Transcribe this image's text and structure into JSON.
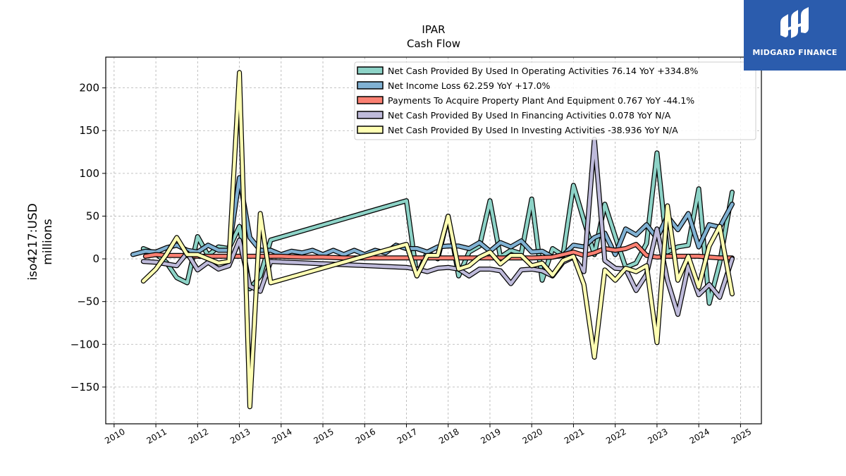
{
  "brand": {
    "name": "MIDGARD FINANCE",
    "color": "#2b5cad"
  },
  "chart_data": {
    "type": "line",
    "title": "IPAR",
    "subtitle": "Cash Flow",
    "xlabel": "",
    "ylabel": "iso4217:USD millions",
    "ylabel_lines": [
      "iso4217:USD",
      "millions"
    ],
    "xlim": [
      2009.8,
      2025.5
    ],
    "ylim": [
      -193,
      236
    ],
    "xticks": [
      2010,
      2011,
      2012,
      2013,
      2014,
      2015,
      2016,
      2017,
      2018,
      2019,
      2020,
      2021,
      2022,
      2023,
      2024,
      2025
    ],
    "xtick_labels": [
      "2010",
      "2011",
      "2012",
      "2013",
      "2014",
      "2015",
      "2016",
      "2017",
      "2018",
      "2019",
      "2020",
      "2021",
      "2022",
      "2023",
      "2024",
      "2025"
    ],
    "yticks": [
      -150,
      -100,
      -50,
      0,
      50,
      100,
      150,
      200
    ],
    "ytick_labels": [
      "−150",
      "−100",
      "−50",
      "0",
      "50",
      "100",
      "150",
      "200"
    ],
    "grid": true,
    "legend_position": "top-right",
    "series": [
      {
        "name": "Net Cash Provided By Used In Operating Activities",
        "legend": "Net Cash Provided By Used In Operating Activities  76.14 YoY +334.8%",
        "color": "#8dd3c7",
        "points": [
          [
            2010.7,
            12
          ],
          [
            2011.0,
            6
          ],
          [
            2011.25,
            -4
          ],
          [
            2011.5,
            -22
          ],
          [
            2011.75,
            -28
          ],
          [
            2012.0,
            26
          ],
          [
            2012.25,
            4
          ],
          [
            2012.5,
            14
          ],
          [
            2012.75,
            12
          ],
          [
            2013.0,
            38
          ],
          [
            2013.25,
            -35
          ],
          [
            2013.5,
            -20
          ],
          [
            2013.75,
            22
          ],
          [
            2017.0,
            68
          ],
          [
            2017.25,
            -20
          ],
          [
            2017.5,
            8
          ],
          [
            2017.75,
            0
          ],
          [
            2018.0,
            50
          ],
          [
            2018.25,
            -20
          ],
          [
            2018.5,
            8
          ],
          [
            2018.75,
            15
          ],
          [
            2019.0,
            68
          ],
          [
            2019.25,
            2
          ],
          [
            2019.5,
            10
          ],
          [
            2019.75,
            6
          ],
          [
            2020.0,
            70
          ],
          [
            2020.25,
            -25
          ],
          [
            2020.5,
            12
          ],
          [
            2020.75,
            4
          ],
          [
            2021.0,
            86
          ],
          [
            2021.25,
            45
          ],
          [
            2021.5,
            5
          ],
          [
            2021.75,
            64
          ],
          [
            2022.0,
            26
          ],
          [
            2022.25,
            -10
          ],
          [
            2022.5,
            -5
          ],
          [
            2022.75,
            18
          ],
          [
            2023.0,
            124
          ],
          [
            2023.25,
            8
          ],
          [
            2023.5,
            14
          ],
          [
            2023.75,
            16
          ],
          [
            2024.0,
            82
          ],
          [
            2024.25,
            -52
          ],
          [
            2024.5,
            -5
          ],
          [
            2024.8,
            78
          ]
        ]
      },
      {
        "name": "Net Income Loss",
        "legend": "Net Income Loss  62.259 YoY +17.0%",
        "color": "#80b1d3",
        "points": [
          [
            2010.45,
            5
          ],
          [
            2010.75,
            9
          ],
          [
            2011.0,
            8
          ],
          [
            2011.25,
            13
          ],
          [
            2011.5,
            16
          ],
          [
            2011.75,
            10
          ],
          [
            2012.0,
            8
          ],
          [
            2012.25,
            16
          ],
          [
            2012.5,
            10
          ],
          [
            2012.75,
            10
          ],
          [
            2013.0,
            95
          ],
          [
            2013.25,
            25
          ],
          [
            2013.5,
            10
          ],
          [
            2013.75,
            10
          ],
          [
            2014.0,
            5
          ],
          [
            2014.25,
            9
          ],
          [
            2014.5,
            7
          ],
          [
            2014.75,
            10
          ],
          [
            2015.0,
            5
          ],
          [
            2015.25,
            10
          ],
          [
            2015.5,
            5
          ],
          [
            2015.75,
            10
          ],
          [
            2016.0,
            5
          ],
          [
            2016.25,
            10
          ],
          [
            2016.5,
            7
          ],
          [
            2016.75,
            16
          ],
          [
            2017.0,
            12
          ],
          [
            2017.25,
            12
          ],
          [
            2017.5,
            8
          ],
          [
            2017.75,
            14
          ],
          [
            2018.0,
            15
          ],
          [
            2018.25,
            15
          ],
          [
            2018.5,
            12
          ],
          [
            2018.75,
            19
          ],
          [
            2019.0,
            9
          ],
          [
            2019.25,
            19
          ],
          [
            2019.5,
            14
          ],
          [
            2019.75,
            21
          ],
          [
            2020.0,
            8
          ],
          [
            2020.25,
            9
          ],
          [
            2020.5,
            2
          ],
          [
            2020.75,
            4
          ],
          [
            2021.0,
            16
          ],
          [
            2021.25,
            14
          ],
          [
            2021.5,
            25
          ],
          [
            2021.75,
            30
          ],
          [
            2022.0,
            5
          ],
          [
            2022.25,
            35
          ],
          [
            2022.5,
            28
          ],
          [
            2022.75,
            40
          ],
          [
            2023.0,
            24
          ],
          [
            2023.25,
            50
          ],
          [
            2023.5,
            34
          ],
          [
            2023.75,
            53
          ],
          [
            2024.0,
            14
          ],
          [
            2024.25,
            40
          ],
          [
            2024.5,
            37
          ],
          [
            2024.8,
            64
          ]
        ]
      },
      {
        "name": "Payments To Acquire Property Plant And Equipment",
        "legend": "Payments To Acquire Property Plant And Equipment  0.767 YoY -44.1%",
        "color": "#fb8072",
        "points": [
          [
            2010.75,
            3
          ],
          [
            2011.0,
            5
          ],
          [
            2011.25,
            4
          ],
          [
            2011.5,
            4
          ],
          [
            2011.75,
            4
          ],
          [
            2012.0,
            3
          ],
          [
            2012.25,
            3
          ],
          [
            2012.5,
            3
          ],
          [
            2012.75,
            3
          ],
          [
            2013.0,
            3
          ],
          [
            2013.25,
            3
          ],
          [
            2013.5,
            3
          ],
          [
            2013.75,
            3
          ],
          [
            2014.0,
            3
          ],
          [
            2014.5,
            2
          ],
          [
            2015.0,
            2
          ],
          [
            2015.5,
            1
          ],
          [
            2016.0,
            1
          ],
          [
            2016.5,
            1
          ],
          [
            2017.0,
            1
          ],
          [
            2017.5,
            1
          ],
          [
            2018.0,
            1
          ],
          [
            2018.5,
            1
          ],
          [
            2019.0,
            1
          ],
          [
            2019.5,
            1
          ],
          [
            2020.0,
            1
          ],
          [
            2020.5,
            2
          ],
          [
            2020.75,
            5
          ],
          [
            2021.0,
            8
          ],
          [
            2021.25,
            4
          ],
          [
            2021.5,
            7
          ],
          [
            2021.75,
            12
          ],
          [
            2022.0,
            10
          ],
          [
            2022.25,
            12
          ],
          [
            2022.5,
            17
          ],
          [
            2022.75,
            4
          ],
          [
            2023.0,
            2
          ],
          [
            2023.25,
            3
          ],
          [
            2023.5,
            3
          ],
          [
            2023.75,
            3
          ],
          [
            2024.0,
            3
          ],
          [
            2024.25,
            2
          ],
          [
            2024.5,
            1
          ],
          [
            2024.8,
            1
          ]
        ]
      },
      {
        "name": "Net Cash Provided By Used In Financing Activities",
        "legend": "Net Cash Provided By Used In Financing Activities  0.078 YoY N/A",
        "color": "#bebada",
        "points": [
          [
            2010.7,
            -3
          ],
          [
            2011.0,
            -4
          ],
          [
            2011.25,
            -6
          ],
          [
            2011.5,
            -8
          ],
          [
            2011.75,
            7
          ],
          [
            2012.0,
            -13
          ],
          [
            2012.25,
            -4
          ],
          [
            2012.5,
            -12
          ],
          [
            2012.75,
            -8
          ],
          [
            2013.0,
            22
          ],
          [
            2013.25,
            -32
          ],
          [
            2013.5,
            -38
          ],
          [
            2013.75,
            -3
          ],
          [
            2017.0,
            -10
          ],
          [
            2017.25,
            -12
          ],
          [
            2017.5,
            -15
          ],
          [
            2017.75,
            -11
          ],
          [
            2018.0,
            -10
          ],
          [
            2018.25,
            -12
          ],
          [
            2018.5,
            -20
          ],
          [
            2018.75,
            -12
          ],
          [
            2019.0,
            -12
          ],
          [
            2019.25,
            -14
          ],
          [
            2019.5,
            -29
          ],
          [
            2019.75,
            -13
          ],
          [
            2020.0,
            -12
          ],
          [
            2020.25,
            -14
          ],
          [
            2020.5,
            -20
          ],
          [
            2020.75,
            -4
          ],
          [
            2021.0,
            2
          ],
          [
            2021.25,
            -15
          ],
          [
            2021.5,
            140
          ],
          [
            2021.75,
            -2
          ],
          [
            2022.0,
            -11
          ],
          [
            2022.25,
            -12
          ],
          [
            2022.5,
            -37
          ],
          [
            2022.75,
            -18
          ],
          [
            2023.0,
            35
          ],
          [
            2023.25,
            -25
          ],
          [
            2023.5,
            -65
          ],
          [
            2023.75,
            -8
          ],
          [
            2024.0,
            -42
          ],
          [
            2024.25,
            -30
          ],
          [
            2024.5,
            -45
          ],
          [
            2024.8,
            0
          ]
        ]
      },
      {
        "name": "Net Cash Provided By Used In Investing Activities",
        "legend": "Net Cash Provided By Used In Investing Activities  -38.936 YoY N/A",
        "color": "#ffffb3",
        "points": [
          [
            2010.7,
            -26
          ],
          [
            2011.0,
            -12
          ],
          [
            2011.25,
            5
          ],
          [
            2011.5,
            25
          ],
          [
            2011.75,
            5
          ],
          [
            2012.0,
            5
          ],
          [
            2012.25,
            0
          ],
          [
            2012.5,
            -5
          ],
          [
            2012.75,
            -3
          ],
          [
            2013.0,
            218
          ],
          [
            2013.25,
            -173
          ],
          [
            2013.5,
            53
          ],
          [
            2013.75,
            -28
          ],
          [
            2017.0,
            17
          ],
          [
            2017.25,
            -20
          ],
          [
            2017.5,
            4
          ],
          [
            2017.75,
            4
          ],
          [
            2018.0,
            50
          ],
          [
            2018.25,
            -12
          ],
          [
            2018.5,
            -8
          ],
          [
            2018.75,
            2
          ],
          [
            2019.0,
            8
          ],
          [
            2019.25,
            -6
          ],
          [
            2019.5,
            4
          ],
          [
            2019.75,
            4
          ],
          [
            2020.0,
            -8
          ],
          [
            2020.25,
            -5
          ],
          [
            2020.5,
            -19
          ],
          [
            2020.75,
            -2
          ],
          [
            2021.0,
            3
          ],
          [
            2021.25,
            -30
          ],
          [
            2021.5,
            -115
          ],
          [
            2021.75,
            -13
          ],
          [
            2022.0,
            -25
          ],
          [
            2022.25,
            -11
          ],
          [
            2022.5,
            -15
          ],
          [
            2022.75,
            -8
          ],
          [
            2023.0,
            -98
          ],
          [
            2023.25,
            62
          ],
          [
            2023.5,
            -25
          ],
          [
            2023.75,
            3
          ],
          [
            2024.0,
            -33
          ],
          [
            2024.25,
            15
          ],
          [
            2024.5,
            38
          ],
          [
            2024.8,
            -41
          ]
        ]
      }
    ]
  }
}
